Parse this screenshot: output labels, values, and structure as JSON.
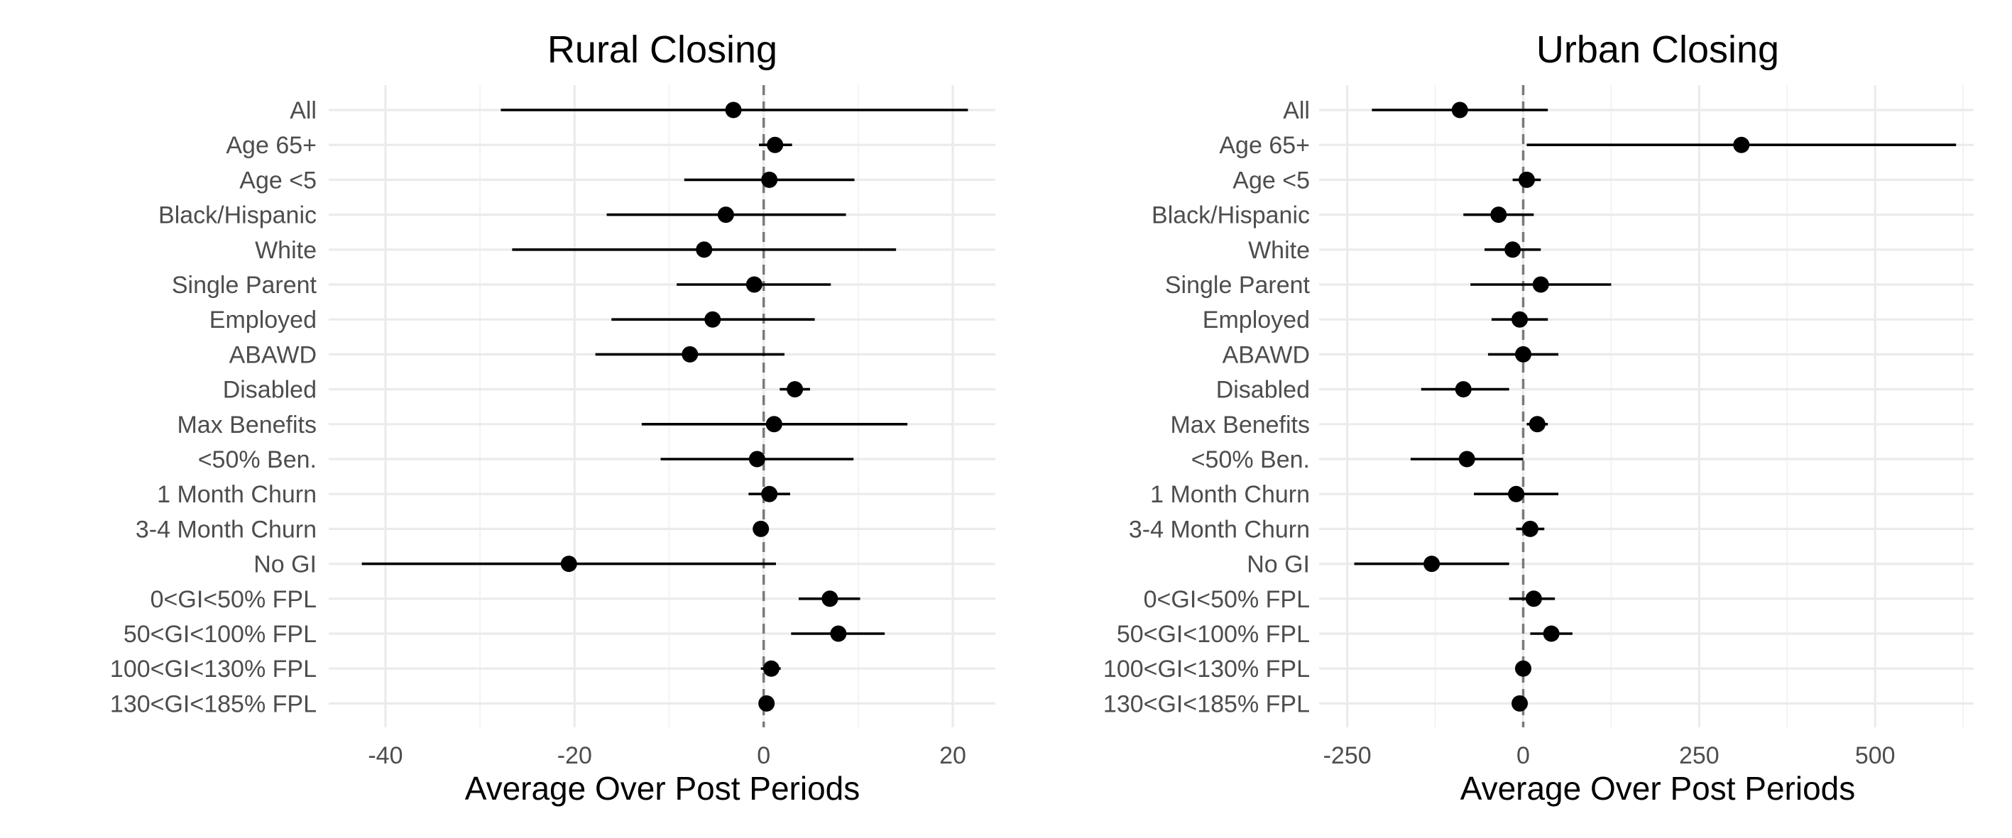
{
  "chart_data": [
    {
      "type": "scatter",
      "subtype": "forest-plot",
      "title": "Rural Closing",
      "xlabel": "Average Over Post Periods",
      "ylabel": "",
      "xlim": [
        -46,
        24.5
      ],
      "xticks": [
        -40,
        -20,
        0,
        20
      ],
      "xtick_labels": [
        "-40",
        "-20",
        "0",
        "20"
      ],
      "reference_line": {
        "x": 0,
        "style": "dashed"
      },
      "grid": true,
      "categories": [
        "All",
        "Age 65+",
        "Age <5",
        "Black/Hispanic",
        "White",
        "Single Parent",
        "Employed",
        "ABAWD",
        "Disabled",
        "Max Benefits",
        "<50% Ben.",
        "1 Month Churn",
        "3-4 Month Churn",
        "No GI",
        "0<GI<50% FPL",
        "50<GI<100% FPL",
        "100<GI<130% FPL",
        "130<GI<185% FPL"
      ],
      "estimate": [
        -3.2,
        1.2,
        0.6,
        -4.0,
        -6.3,
        -1.0,
        -5.4,
        -7.8,
        3.3,
        1.1,
        -0.7,
        0.6,
        -0.3,
        -20.6,
        7.0,
        7.9,
        0.8,
        0.3
      ],
      "ci_low": [
        -27.8,
        -0.5,
        -8.4,
        -16.6,
        -26.6,
        -9.2,
        -16.1,
        -17.8,
        1.7,
        -12.9,
        -10.9,
        -1.6,
        -0.9,
        -42.5,
        3.7,
        2.9,
        -0.3,
        -0.4
      ],
      "ci_high": [
        21.6,
        3.0,
        9.6,
        8.7,
        14.0,
        7.1,
        5.4,
        2.2,
        4.9,
        15.2,
        9.5,
        2.8,
        0.3,
        1.3,
        10.2,
        12.8,
        1.8,
        1.0
      ]
    },
    {
      "type": "scatter",
      "subtype": "forest-plot",
      "title": "Urban Closing",
      "xlabel": "Average Over Post Periods",
      "ylabel": "",
      "xlim": [
        -290,
        640
      ],
      "xticks": [
        -250,
        0,
        250,
        500
      ],
      "xtick_labels": [
        "-250",
        "0",
        "250",
        "500"
      ],
      "reference_line": {
        "x": 0,
        "style": "dashed"
      },
      "grid": true,
      "categories": [
        "All",
        "Age 65+",
        "Age <5",
        "Black/Hispanic",
        "White",
        "Single Parent",
        "Employed",
        "ABAWD",
        "Disabled",
        "Max Benefits",
        "<50% Ben.",
        "1 Month Churn",
        "3-4 Month Churn",
        "No GI",
        "0<GI<50% FPL",
        "50<GI<100% FPL",
        "100<GI<130% FPL",
        "130<GI<185% FPL"
      ],
      "estimate": [
        -90,
        310,
        5,
        -35,
        -15,
        25,
        -5,
        0,
        -85,
        20,
        -80,
        -10,
        10,
        -130,
        15,
        40,
        0,
        -5
      ],
      "ci_low": [
        -215,
        5,
        -15,
        -85,
        -55,
        -75,
        -45,
        -50,
        -145,
        5,
        -160,
        -70,
        -10,
        -240,
        -20,
        10,
        -10,
        -15
      ],
      "ci_high": [
        35,
        615,
        25,
        15,
        25,
        125,
        35,
        50,
        -20,
        35,
        0,
        50,
        30,
        -20,
        45,
        70,
        10,
        5
      ]
    }
  ]
}
